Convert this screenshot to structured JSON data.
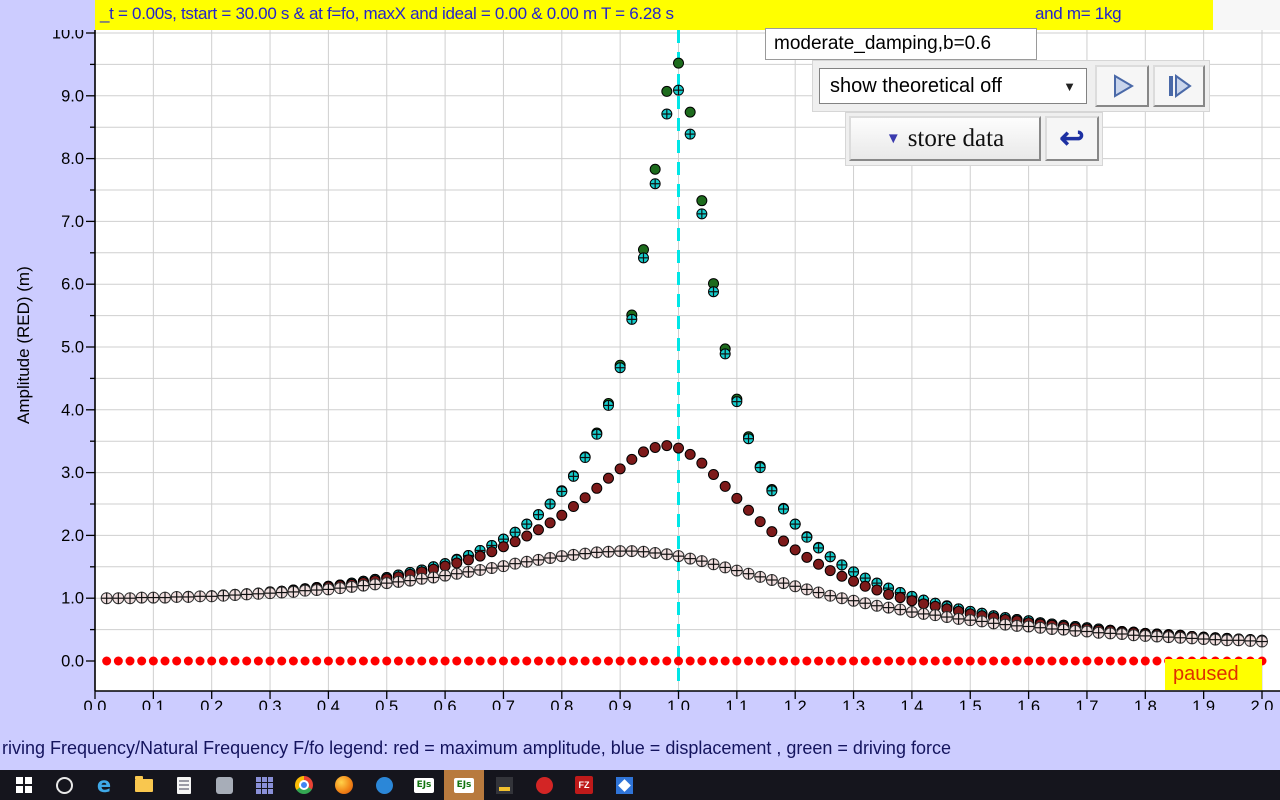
{
  "header": {
    "status_left": "_t = 0.00s, tstart = 30.00 s & at f=fo, maxX and ideal = 0.00 & 0.00 m T = 6.28 s",
    "status_right": "and m= 1kg",
    "preset_label": "moderate_damping,b=0.6"
  },
  "controls": {
    "dropdown_value": "show theoretical off",
    "dropdown_arrow": "▼",
    "store_data_label": "store data",
    "store_data_arrow": "▼",
    "reset_icon": "↩"
  },
  "status": {
    "paused_label": "paused"
  },
  "taskbar": {
    "items": [
      {
        "name": "start"
      },
      {
        "name": "search"
      },
      {
        "name": "edge",
        "label": "e"
      },
      {
        "name": "file-explorer"
      },
      {
        "name": "document-app"
      },
      {
        "name": "settings-app"
      },
      {
        "name": "office-grid"
      },
      {
        "name": "chrome"
      },
      {
        "name": "firefox"
      },
      {
        "name": "mail-app"
      },
      {
        "name": "ejs",
        "label": "EJs"
      },
      {
        "name": "ejs-active",
        "label": "EJs"
      },
      {
        "name": "java-app"
      },
      {
        "name": "media-app"
      },
      {
        "name": "filezilla",
        "label": "FZ"
      },
      {
        "name": "photos-app"
      }
    ]
  },
  "chart_data": {
    "type": "scatter",
    "ylabel": "Amplitude (RED) (m)",
    "xlabel_visible": "riving Frequency/Natural Frequency F/fo legend: red = maximum amplitude, blue = displacement , green = driving force",
    "xlim": [
      0,
      2.03
    ],
    "ylim": [
      -0.48,
      10.05
    ],
    "x_ticks": [
      "0.0",
      "0.1",
      "0.2",
      "0.3",
      "0.4",
      "0.5",
      "0.6",
      "0.7",
      "0.8",
      "0.9",
      "1.0",
      "1.1",
      "1.2",
      "1.3",
      "1.4",
      "1.5",
      "1.6",
      "1.7",
      "1.8",
      "1.9",
      "2.0"
    ],
    "y_ticks": [
      "0.0",
      "1.0",
      "2.0",
      "3.0",
      "4.0",
      "5.0",
      "6.0",
      "7.0",
      "8.0",
      "9.0",
      "10.0"
    ],
    "grid": {
      "x_step": 0.1,
      "y_step": 0.5,
      "color": "#cfcfcf"
    },
    "reference_line": {
      "x": 1.0,
      "color": "#00e6e6",
      "style": "dashed"
    },
    "series": [
      {
        "name": "driving-force-green",
        "marker": "circle",
        "fill": "#1d6b1d",
        "edge": "#000000",
        "radius": 5,
        "x_start": 0.02,
        "x_step": 0.02,
        "y": [
          1.0,
          1.0,
          1.0,
          1.01,
          1.01,
          1.01,
          1.02,
          1.03,
          1.03,
          1.04,
          1.05,
          1.06,
          1.07,
          1.08,
          1.1,
          1.11,
          1.13,
          1.15,
          1.17,
          1.19,
          1.21,
          1.24,
          1.27,
          1.3,
          1.33,
          1.37,
          1.41,
          1.45,
          1.5,
          1.55,
          1.62,
          1.68,
          1.76,
          1.84,
          1.94,
          2.05,
          2.18,
          2.33,
          2.5,
          2.71,
          2.95,
          3.25,
          3.63,
          4.1,
          4.71,
          5.51,
          6.55,
          7.83,
          9.07,
          9.52,
          8.74,
          7.33,
          6.01,
          4.97,
          4.17,
          3.57,
          3.1,
          2.73,
          2.43,
          2.18,
          1.98,
          1.81,
          1.66,
          1.53,
          1.42,
          1.32,
          1.24,
          1.16,
          1.09,
          1.03,
          0.97,
          0.92,
          0.88,
          0.83,
          0.79,
          0.76,
          0.72,
          0.69,
          0.66,
          0.64,
          0.61,
          0.59,
          0.57,
          0.55,
          0.53,
          0.51,
          0.49,
          0.47,
          0.46,
          0.44,
          0.43,
          0.42,
          0.41,
          0.39,
          0.38,
          0.37,
          0.36,
          0.35,
          0.34,
          0.33
        ]
      },
      {
        "name": "displacement-blue",
        "marker": "circle-cross",
        "fill": "#15cdcd",
        "edge": "#000000",
        "radius": 5,
        "x_start": 0.02,
        "x_step": 0.02,
        "y": [
          1.0,
          1.0,
          1.0,
          1.01,
          1.01,
          1.01,
          1.02,
          1.03,
          1.03,
          1.04,
          1.05,
          1.06,
          1.07,
          1.08,
          1.1,
          1.11,
          1.13,
          1.15,
          1.17,
          1.19,
          1.21,
          1.24,
          1.27,
          1.3,
          1.33,
          1.37,
          1.41,
          1.45,
          1.5,
          1.55,
          1.61,
          1.68,
          1.76,
          1.84,
          1.94,
          2.05,
          2.18,
          2.33,
          2.5,
          2.7,
          2.94,
          3.24,
          3.61,
          4.07,
          4.67,
          5.44,
          6.42,
          7.6,
          8.71,
          9.09,
          8.39,
          7.12,
          5.88,
          4.89,
          4.13,
          3.54,
          3.08,
          2.71,
          2.42,
          2.18,
          1.97,
          1.8,
          1.66,
          1.53,
          1.42,
          1.32,
          1.24,
          1.16,
          1.09,
          1.03,
          0.97,
          0.92,
          0.87,
          0.83,
          0.79,
          0.76,
          0.72,
          0.69,
          0.66,
          0.64,
          0.61,
          0.59,
          0.57,
          0.55,
          0.53,
          0.51,
          0.49,
          0.47,
          0.46,
          0.44,
          0.43,
          0.42,
          0.41,
          0.39,
          0.38,
          0.37,
          0.36,
          0.35,
          0.34,
          0.33
        ]
      },
      {
        "name": "stored-max-amplitude-dark-red",
        "marker": "circle",
        "fill": "#7d1a1a",
        "edge": "#000000",
        "radius": 5,
        "x_start": 0.02,
        "x_step": 0.02,
        "y": [
          1.0,
          1.0,
          1.0,
          1.01,
          1.01,
          1.01,
          1.02,
          1.03,
          1.03,
          1.04,
          1.05,
          1.06,
          1.07,
          1.08,
          1.09,
          1.11,
          1.12,
          1.14,
          1.16,
          1.18,
          1.2,
          1.22,
          1.25,
          1.28,
          1.31,
          1.34,
          1.38,
          1.42,
          1.46,
          1.51,
          1.56,
          1.61,
          1.67,
          1.74,
          1.82,
          1.9,
          1.99,
          2.09,
          2.2,
          2.32,
          2.46,
          2.6,
          2.75,
          2.91,
          3.06,
          3.21,
          3.33,
          3.4,
          3.43,
          3.39,
          3.29,
          3.15,
          2.97,
          2.78,
          2.59,
          2.4,
          2.22,
          2.06,
          1.91,
          1.77,
          1.65,
          1.54,
          1.44,
          1.35,
          1.27,
          1.19,
          1.13,
          1.06,
          1.01,
          0.96,
          0.91,
          0.87,
          0.83,
          0.79,
          0.75,
          0.72,
          0.69,
          0.66,
          0.64,
          0.61,
          0.59,
          0.57,
          0.55,
          0.53,
          0.51,
          0.49,
          0.48,
          0.46,
          0.45,
          0.43,
          0.42,
          0.41,
          0.4,
          0.39,
          0.37,
          0.36,
          0.35,
          0.34,
          0.34,
          0.33
        ]
      },
      {
        "name": "stored-amplitude-light-pink",
        "marker": "circle-cross",
        "fill": "#f1dfdf",
        "edge": "#333333",
        "radius": 5.5,
        "x_start": 0.02,
        "x_step": 0.02,
        "y": [
          1.0,
          1.0,
          1.0,
          1.01,
          1.01,
          1.01,
          1.02,
          1.02,
          1.03,
          1.03,
          1.04,
          1.05,
          1.06,
          1.07,
          1.08,
          1.09,
          1.1,
          1.12,
          1.13,
          1.14,
          1.16,
          1.18,
          1.2,
          1.22,
          1.24,
          1.26,
          1.28,
          1.31,
          1.33,
          1.36,
          1.39,
          1.42,
          1.45,
          1.48,
          1.51,
          1.55,
          1.58,
          1.61,
          1.64,
          1.67,
          1.69,
          1.71,
          1.73,
          1.74,
          1.75,
          1.75,
          1.74,
          1.72,
          1.7,
          1.67,
          1.63,
          1.59,
          1.54,
          1.49,
          1.44,
          1.39,
          1.34,
          1.29,
          1.24,
          1.19,
          1.14,
          1.09,
          1.04,
          1.0,
          0.96,
          0.92,
          0.88,
          0.85,
          0.82,
          0.78,
          0.75,
          0.73,
          0.7,
          0.67,
          0.65,
          0.63,
          0.6,
          0.58,
          0.56,
          0.55,
          0.53,
          0.51,
          0.5,
          0.48,
          0.47,
          0.45,
          0.44,
          0.43,
          0.41,
          0.4,
          0.39,
          0.38,
          0.37,
          0.36,
          0.35,
          0.34,
          0.33,
          0.33,
          0.32,
          0.31
        ]
      },
      {
        "name": "current-run-max-amplitude-red",
        "marker": "circle",
        "fill": "#ff0000",
        "edge": "none",
        "radius": 4.5,
        "x_start": 0.02,
        "x_step": 0.02,
        "count": 100,
        "y_const": 0.0
      }
    ]
  }
}
